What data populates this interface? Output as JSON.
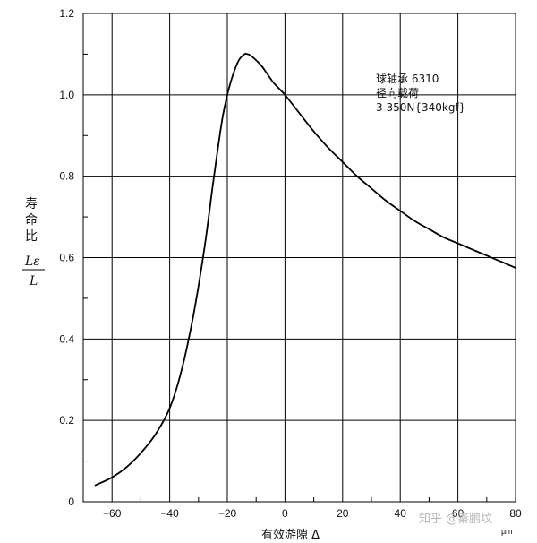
{
  "chart_data": {
    "type": "line",
    "xlim": [
      -70,
      80
    ],
    "ylim": [
      0,
      1.2
    ],
    "x_ticks": [
      -60,
      -40,
      -20,
      0,
      20,
      40,
      60,
      80
    ],
    "x_tick_labels": [
      "−60",
      "−40",
      "−20",
      "0",
      "20",
      "40",
      "60",
      "80"
    ],
    "y_ticks": [
      0,
      0.2,
      0.4,
      0.6,
      0.8,
      1.0,
      1.2
    ],
    "y_tick_labels": [
      "0",
      "0.2",
      "0.4",
      "0.6",
      "0.8",
      "1.0",
      "1.2"
    ],
    "grid": true,
    "xlabel": "有效游隙 Δ",
    "xunit": "μm",
    "ylabel_lines": [
      "寿",
      "命",
      "比"
    ],
    "ylabel_fraction": {
      "numerator": "Lε",
      "denominator": "L"
    },
    "annotation": [
      "球轴承 6310",
      "径向载荷",
      "3 350N{340kgf}"
    ],
    "series": [
      {
        "x": [
          -66,
          -60,
          -55,
          -50,
          -45,
          -40,
          -36,
          -32,
          -28,
          -25,
          -22,
          -20,
          -18,
          -16,
          -14,
          -13,
          -12,
          -10,
          -8,
          -6,
          -4,
          -2,
          0,
          5,
          10,
          15,
          20,
          25,
          30,
          35,
          40,
          45,
          50,
          55,
          60,
          65,
          70,
          75,
          80
        ],
        "y": [
          0.04,
          0.06,
          0.085,
          0.12,
          0.165,
          0.23,
          0.32,
          0.45,
          0.62,
          0.78,
          0.93,
          1.0,
          1.05,
          1.085,
          1.1,
          1.1,
          1.097,
          1.085,
          1.07,
          1.05,
          1.03,
          1.015,
          1.0,
          0.955,
          0.91,
          0.87,
          0.835,
          0.8,
          0.77,
          0.74,
          0.715,
          0.69,
          0.67,
          0.65,
          0.635,
          0.62,
          0.605,
          0.59,
          0.575
        ]
      }
    ]
  },
  "watermark": "知乎 @秦鹏坟"
}
